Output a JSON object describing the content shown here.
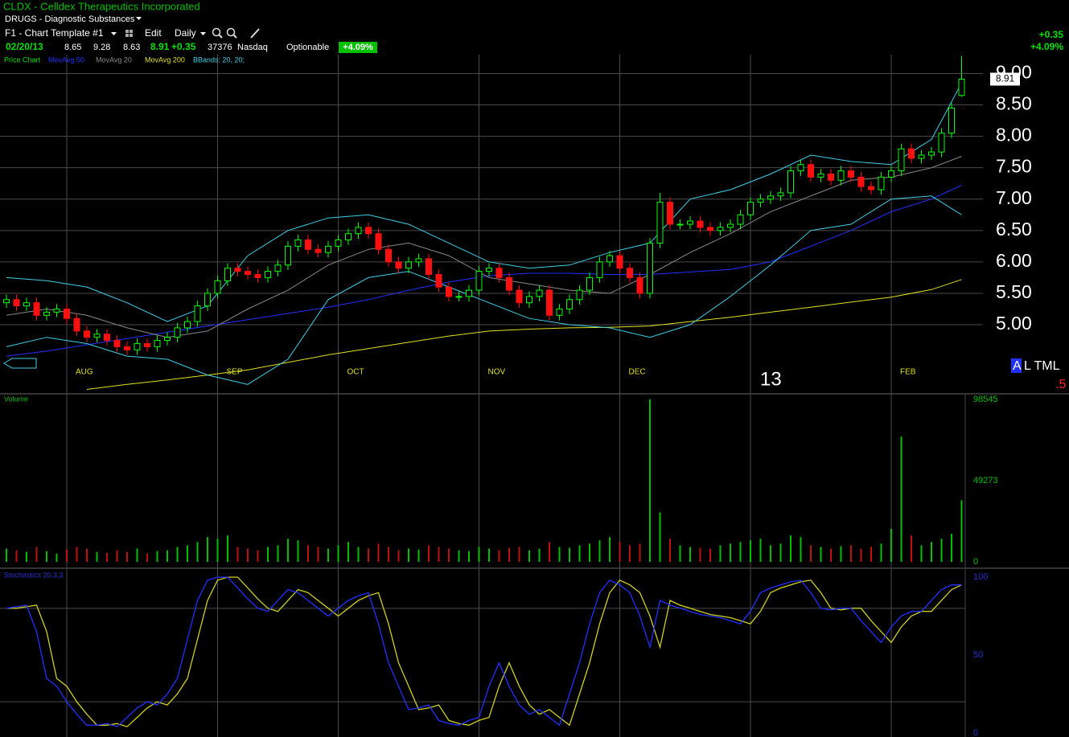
{
  "header": {
    "symbol": "CLDX - Celldex Therapeutics Incorporated",
    "industry": "DRUGS - Diagnostic Substances",
    "template": "F1 - Chart Template #1",
    "edit": "Edit",
    "period": "Daily",
    "quote": {
      "date": "02/20/13",
      "open": "8.65",
      "high": "9.28",
      "low": "8.63",
      "last": "8.91",
      "change": "+0.35",
      "volume": "37376",
      "exchange": "Nasdaq",
      "optionable": "Optionable",
      "percent": "+4.09%"
    },
    "right_change": "+0.35",
    "right_percent": "+4.09%",
    "tools": "A",
    "tools_rest": "L TML",
    "fraction": ".5"
  },
  "chart_data": [
    {
      "type": "candlestick",
      "categories": [
        null,
        null,
        null,
        null,
        null,
        null,
        null,
        null,
        null,
        null,
        null,
        null,
        null,
        null,
        null,
        null,
        null,
        null,
        null,
        null,
        null,
        null,
        null,
        null,
        null,
        null,
        null,
        null,
        null,
        null,
        null,
        null,
        null,
        null,
        null,
        null,
        null,
        null,
        null,
        null,
        null,
        null,
        null,
        null,
        null,
        null,
        null,
        null,
        null,
        null,
        null,
        null,
        null,
        null,
        null,
        null,
        null,
        null,
        null,
        null,
        null,
        null,
        null,
        null,
        null,
        null,
        null,
        null,
        null,
        null,
        null,
        null,
        null,
        null,
        null,
        null,
        null,
        null,
        null,
        null,
        null,
        null,
        null,
        null,
        null,
        null,
        null,
        null,
        null,
        null,
        null,
        null,
        null,
        null,
        null,
        null
      ],
      "ylim": [
        3.9,
        9.3
      ],
      "yticks": [
        {
          "value": 5,
          "label": "5.00"
        },
        {
          "value": 5.5,
          "label": "5.50"
        },
        {
          "value": 6,
          "label": "6.00"
        },
        {
          "value": 6.5,
          "label": "6.50"
        },
        {
          "value": 7,
          "label": "7.00"
        },
        {
          "value": 7.5,
          "label": "7.50"
        },
        {
          "value": 8,
          "label": "8.00"
        },
        {
          "value": 8.5,
          "label": "8.50"
        },
        {
          "value": 9,
          "label": "9.00"
        }
      ],
      "xticks": [
        {
          "value": 6,
          "label": "AUG"
        },
        {
          "value": 21,
          "label": "SEP"
        },
        {
          "value": 33,
          "label": "OCT"
        },
        {
          "value": 47,
          "label": "NOV"
        },
        {
          "value": 61,
          "label": "DEC"
        },
        {
          "value": 74,
          "label": "13"
        },
        {
          "value": 88,
          "label": "FEB"
        }
      ],
      "grid": true,
      "tick_color": "#ffffff",
      "candles": {
        "name": "Price Chart",
        "color": "#00e000",
        "up_color": "#00ff00",
        "down_color": "#ff1010",
        "open": [
          5.35,
          5.4,
          5.3,
          5.35,
          5.15,
          5.2,
          5.25,
          5.1,
          4.9,
          4.8,
          4.85,
          4.75,
          4.65,
          4.6,
          4.7,
          4.65,
          4.75,
          4.8,
          4.95,
          5.05,
          5.3,
          5.5,
          5.7,
          5.9,
          5.85,
          5.8,
          5.75,
          5.85,
          5.95,
          6.25,
          6.35,
          6.2,
          6.15,
          6.25,
          6.35,
          6.45,
          6.55,
          6.45,
          6.2,
          6.0,
          5.9,
          6.0,
          6.05,
          5.8,
          5.6,
          5.45,
          5.45,
          5.55,
          5.85,
          5.9,
          5.75,
          5.55,
          5.35,
          5.45,
          5.55,
          5.15,
          5.25,
          5.4,
          5.55,
          5.75,
          6.0,
          6.1,
          5.9,
          5.75,
          5.5,
          6.3,
          6.95,
          6.6,
          6.6,
          6.65,
          6.55,
          6.5,
          6.55,
          6.6,
          6.75,
          6.95,
          7.0,
          7.05,
          7.1,
          7.45,
          7.55,
          7.35,
          7.4,
          7.3,
          7.45,
          7.35,
          7.2,
          7.15,
          7.35,
          7.45,
          7.8,
          7.65,
          7.7,
          7.75,
          8.05,
          8.65
        ],
        "high": [
          5.48,
          5.48,
          5.43,
          5.43,
          5.28,
          5.33,
          5.33,
          5.18,
          4.98,
          4.93,
          4.93,
          4.83,
          4.73,
          4.78,
          4.78,
          4.83,
          4.88,
          5.03,
          5.13,
          5.38,
          5.58,
          5.78,
          5.98,
          5.98,
          5.93,
          5.88,
          5.93,
          6.03,
          6.33,
          6.43,
          6.43,
          6.28,
          6.33,
          6.43,
          6.53,
          6.63,
          6.63,
          6.53,
          6.28,
          6.08,
          6.08,
          6.13,
          6.13,
          5.88,
          5.68,
          5.53,
          5.63,
          5.93,
          5.98,
          5.98,
          5.83,
          5.63,
          5.53,
          5.63,
          5.63,
          5.33,
          5.48,
          5.63,
          5.83,
          6.08,
          6.18,
          6.18,
          5.98,
          5.83,
          6.38,
          7.1,
          7.03,
          6.68,
          6.73,
          6.73,
          6.63,
          6.63,
          6.68,
          6.83,
          7.03,
          7.08,
          7.13,
          7.18,
          7.53,
          7.63,
          7.63,
          7.48,
          7.48,
          7.53,
          7.53,
          7.43,
          7.28,
          7.43,
          7.53,
          7.88,
          7.88,
          7.78,
          7.83,
          8.13,
          8.53,
          9.28
        ],
        "low": [
          5.27,
          5.22,
          5.22,
          5.07,
          5.07,
          5.12,
          5.02,
          4.82,
          4.72,
          4.72,
          4.67,
          4.57,
          4.52,
          4.52,
          4.57,
          4.57,
          4.67,
          4.72,
          4.87,
          4.97,
          5.22,
          5.42,
          5.62,
          5.77,
          5.72,
          5.67,
          5.67,
          5.77,
          5.87,
          6.17,
          6.12,
          6.07,
          6.07,
          6.17,
          6.27,
          6.37,
          6.37,
          6.12,
          5.92,
          5.82,
          5.82,
          5.92,
          5.72,
          5.52,
          5.37,
          5.37,
          5.37,
          5.47,
          5.77,
          5.67,
          5.47,
          5.27,
          5.27,
          5.37,
          5.07,
          5.07,
          5.17,
          5.32,
          5.47,
          5.67,
          5.92,
          5.82,
          5.67,
          5.42,
          5.42,
          6.22,
          6.52,
          6.52,
          6.52,
          6.47,
          6.42,
          6.42,
          6.47,
          6.52,
          6.67,
          6.87,
          6.92,
          6.97,
          7.02,
          7.37,
          7.27,
          7.27,
          7.22,
          7.22,
          7.27,
          7.12,
          7.07,
          7.07,
          7.27,
          7.37,
          7.57,
          7.57,
          7.62,
          7.67,
          7.97,
          8.63
        ],
        "close": [
          5.4,
          5.3,
          5.35,
          5.15,
          5.2,
          5.25,
          5.1,
          4.9,
          4.8,
          4.85,
          4.75,
          4.65,
          4.6,
          4.7,
          4.65,
          4.75,
          4.8,
          4.95,
          5.05,
          5.3,
          5.5,
          5.7,
          5.9,
          5.85,
          5.8,
          5.75,
          5.85,
          5.95,
          6.25,
          6.35,
          6.2,
          6.15,
          6.25,
          6.35,
          6.45,
          6.55,
          6.45,
          6.2,
          6.0,
          5.9,
          6.0,
          6.05,
          5.8,
          5.6,
          5.45,
          5.45,
          5.55,
          5.85,
          5.9,
          5.75,
          5.55,
          5.35,
          5.45,
          5.55,
          5.15,
          5.25,
          5.4,
          5.55,
          5.75,
          6.0,
          6.1,
          5.9,
          5.75,
          5.5,
          6.3,
          6.95,
          6.6,
          6.6,
          6.65,
          6.55,
          6.5,
          6.55,
          6.6,
          6.75,
          6.95,
          7.0,
          7.05,
          7.1,
          7.45,
          7.55,
          7.35,
          7.4,
          7.3,
          7.45,
          7.35,
          7.2,
          7.15,
          7.35,
          7.45,
          7.8,
          7.65,
          7.7,
          7.75,
          8.05,
          8.45,
          8.91
        ]
      },
      "series": [
        {
          "name": "MovAvg 50",
          "color": "#2030ff",
          "x": [
            0,
            4,
            8,
            12,
            16,
            20,
            24,
            28,
            32,
            36,
            40,
            44,
            48,
            52,
            56,
            60,
            64,
            68,
            72,
            76,
            80,
            84,
            88,
            92,
            95
          ],
          "values": [
            4.5,
            4.58,
            4.68,
            4.78,
            4.88,
            4.98,
            5.08,
            5.18,
            5.28,
            5.4,
            5.55,
            5.68,
            5.78,
            5.82,
            5.82,
            5.8,
            5.8,
            5.84,
            5.88,
            6.0,
            6.25,
            6.5,
            6.8,
            7.0,
            7.22
          ]
        },
        {
          "name": "MovAvg 20",
          "color": "#8a8a8a",
          "x": [
            0,
            4,
            8,
            12,
            16,
            20,
            24,
            28,
            32,
            36,
            40,
            44,
            48,
            52,
            56,
            60,
            64,
            68,
            72,
            76,
            80,
            84,
            88,
            92,
            95
          ],
          "values": [
            5.15,
            5.25,
            5.15,
            4.95,
            4.8,
            4.9,
            5.25,
            5.55,
            5.95,
            6.2,
            6.3,
            6.1,
            5.75,
            5.65,
            5.55,
            5.5,
            5.8,
            6.15,
            6.45,
            6.8,
            7.05,
            7.3,
            7.35,
            7.5,
            7.68
          ]
        },
        {
          "name": "MovAvg 200",
          "color": "#e0e020",
          "x": [
            0,
            4,
            8,
            12,
            16,
            20,
            24,
            28,
            32,
            36,
            40,
            44,
            48,
            52,
            56,
            60,
            64,
            68,
            72,
            76,
            80,
            84,
            88,
            92,
            95
          ],
          "values": [
            null,
            null,
            3.97,
            4.05,
            4.12,
            4.2,
            4.28,
            4.4,
            4.52,
            4.62,
            4.72,
            4.82,
            4.9,
            4.93,
            4.95,
            4.96,
            4.98,
            5.05,
            5.12,
            5.2,
            5.28,
            5.36,
            5.44,
            5.56,
            5.72
          ]
        },
        {
          "name": "BBands: 20, 20;",
          "color": "#40d0e8",
          "x": [
            0,
            4,
            8,
            12,
            16,
            20,
            24,
            28,
            32,
            36,
            40,
            44,
            48,
            52,
            56,
            60,
            64,
            68,
            72,
            76,
            80,
            84,
            88,
            92,
            95
          ],
          "values": [
            5.75,
            5.7,
            5.6,
            5.35,
            5.05,
            5.3,
            6.1,
            6.5,
            6.7,
            6.75,
            6.6,
            6.3,
            6.0,
            5.9,
            5.95,
            6.15,
            6.3,
            7.0,
            7.15,
            7.4,
            7.7,
            7.6,
            7.55,
            7.95,
            8.85
          ],
          "lower": [
            4.65,
            4.8,
            4.7,
            4.5,
            4.45,
            4.2,
            4.05,
            4.45,
            5.4,
            5.75,
            5.85,
            5.6,
            5.35,
            5.1,
            5.0,
            4.95,
            4.8,
            5.0,
            5.45,
            5.95,
            6.5,
            6.6,
            7.0,
            7.05,
            6.75
          ]
        }
      ]
    },
    {
      "type": "bar",
      "title": "Volume",
      "ylim": [
        -3900,
        101960
      ],
      "yticks": [
        0,
        49273,
        98545
      ],
      "tick_color": "#00c000",
      "up_color": "#00c000",
      "down_color": "#c01010",
      "values": [
        8000,
        7000,
        6000,
        9000,
        6500,
        5000,
        7500,
        9000,
        8000,
        6000,
        5500,
        7000,
        6000,
        8000,
        5000,
        6500,
        7000,
        9000,
        10000,
        12000,
        15000,
        14000,
        16000,
        9000,
        8000,
        7000,
        9000,
        10000,
        14000,
        13000,
        10000,
        9000,
        8000,
        10000,
        12000,
        9000,
        8000,
        11000,
        9000,
        7000,
        8000,
        7500,
        10000,
        9000,
        8000,
        7000,
        6500,
        9000,
        8000,
        7000,
        8500,
        9000,
        7000,
        8000,
        12000,
        9000,
        8500,
        10000,
        11000,
        13000,
        15000,
        12000,
        10000,
        11000,
        98545,
        30000,
        14000,
        10000,
        9000,
        8500,
        8000,
        10000,
        11000,
        12000,
        13000,
        14000,
        10000,
        11000,
        16000,
        15000,
        10000,
        9000,
        8000,
        9500,
        10000,
        8000,
        9000,
        11000,
        20000,
        76000,
        16000,
        10000,
        12000,
        14000,
        17000,
        37376
      ]
    },
    {
      "type": "line",
      "title": "Stochastics 20,3,3",
      "ylim": [
        -2.6,
        105.7
      ],
      "yticks": [
        0,
        50,
        100
      ],
      "levels": [
        20,
        80
      ],
      "tick_color": "#2830d0",
      "series": [
        {
          "color": "#d0d020",
          "values": [
            80,
            80,
            81,
            82,
            65,
            35,
            30,
            20,
            12,
            5,
            5,
            6,
            4,
            10,
            16,
            20,
            18,
            25,
            35,
            60,
            85,
            98,
            100,
            100,
            93,
            86,
            80,
            78,
            85,
            92,
            90,
            85,
            80,
            75,
            80,
            85,
            88,
            90,
            70,
            45,
            30,
            15,
            16,
            18,
            8,
            6,
            5,
            8,
            10,
            30,
            45,
            30,
            18,
            12,
            15,
            10,
            5,
            25,
            45,
            70,
            90,
            98,
            95,
            90,
            75,
            55,
            85,
            82,
            80,
            78,
            76,
            75,
            74,
            72,
            70,
            78,
            90,
            93,
            95,
            97,
            98,
            90,
            80,
            79,
            80,
            80,
            72,
            65,
            58,
            68,
            75,
            78,
            78,
            85,
            92,
            95
          ]
        },
        {
          "color": "#2030ff",
          "values": [
            80,
            81,
            82,
            65,
            35,
            30,
            20,
            12,
            5,
            5,
            6,
            4,
            10,
            16,
            20,
            18,
            25,
            35,
            60,
            85,
            98,
            100,
            100,
            93,
            86,
            80,
            78,
            85,
            92,
            90,
            85,
            80,
            75,
            80,
            85,
            88,
            90,
            70,
            45,
            30,
            15,
            16,
            18,
            8,
            6,
            5,
            8,
            10,
            30,
            45,
            30,
            18,
            12,
            15,
            10,
            5,
            25,
            45,
            70,
            90,
            98,
            95,
            90,
            75,
            55,
            85,
            82,
            80,
            78,
            76,
            75,
            74,
            72,
            70,
            78,
            90,
            93,
            95,
            97,
            98,
            90,
            80,
            79,
            80,
            80,
            72,
            65,
            58,
            68,
            75,
            78,
            78,
            85,
            92,
            95,
            95
          ]
        }
      ]
    }
  ]
}
